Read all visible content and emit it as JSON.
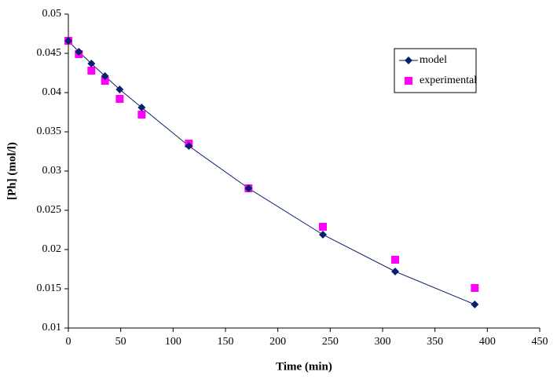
{
  "chart_data": {
    "type": "scatter",
    "x_label": "Time (min)",
    "y_label": "[Ph] (mol/l)",
    "x": [
      0,
      10,
      22,
      35,
      49,
      70,
      115,
      172,
      243,
      312,
      388
    ],
    "series": [
      {
        "name": "model",
        "color": "#0a1f6e",
        "marker": "diamond",
        "line": true,
        "values": [
          0.0466,
          0.0452,
          0.0437,
          0.0421,
          0.0404,
          0.0381,
          0.0332,
          0.0278,
          0.0219,
          0.0172,
          0.013
        ]
      },
      {
        "name": "experimental",
        "color": "#ff00ff",
        "marker": "square",
        "line": false,
        "values": [
          0.0466,
          0.0449,
          0.0428,
          0.0415,
          0.0392,
          0.0372,
          0.0335,
          0.0278,
          0.0229,
          0.0187,
          0.0151
        ]
      }
    ],
    "xlim": [
      0,
      450
    ],
    "xticks": [
      0,
      50,
      100,
      150,
      200,
      250,
      300,
      350,
      400,
      450
    ],
    "ylim": [
      0.01,
      0.05
    ],
    "yticks": [
      0.01,
      0.015,
      0.02,
      0.025,
      0.03,
      0.035,
      0.04,
      0.045,
      0.05
    ],
    "grid": false,
    "legend": "upper right"
  }
}
